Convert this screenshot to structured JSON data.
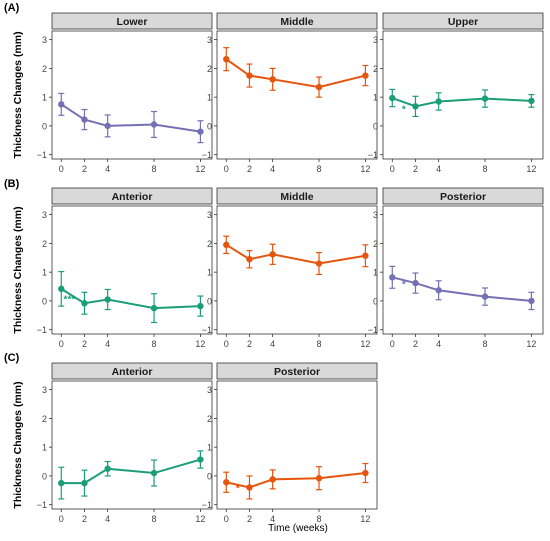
{
  "x_axis_label": "Time (weeks)",
  "colors": {
    "purple": "#7570b3",
    "orange": "#e6550d",
    "green": "#1b9e77",
    "strip_bg": "#d9d9d9"
  },
  "chart_data": [
    {
      "type": "line",
      "row_label": "(A)",
      "ylabel": "Thickness Changes (mm)",
      "x_ticks": [
        0,
        2,
        4,
        8,
        12
      ],
      "y_ticks": [
        -1,
        0,
        1,
        2,
        3
      ],
      "ylim": [
        -1.15,
        3.3
      ],
      "xlim": [
        -0.8,
        13
      ],
      "panels": [
        {
          "title": "Lower",
          "color": "#7570b3",
          "x": [
            0,
            2,
            4,
            8,
            12
          ],
          "y": [
            0.75,
            0.22,
            0.0,
            0.05,
            -0.2
          ],
          "err": [
            0.38,
            0.35,
            0.38,
            0.45,
            0.38
          ]
        },
        {
          "title": "Middle",
          "color": "#e6550d",
          "x": [
            0,
            2,
            4,
            8,
            12
          ],
          "y": [
            2.32,
            1.75,
            1.62,
            1.35,
            1.75
          ],
          "err": [
            0.4,
            0.4,
            0.38,
            0.35,
            0.35
          ]
        },
        {
          "title": "Upper",
          "color": "#1b9e77",
          "x": [
            0,
            2,
            4,
            8,
            12
          ],
          "y": [
            0.97,
            0.68,
            0.85,
            0.95,
            0.87
          ],
          "err": [
            0.3,
            0.35,
            0.3,
            0.3,
            0.22
          ],
          "annotation": {
            "text": "*",
            "x": 1.0,
            "y": 0.6
          }
        }
      ]
    },
    {
      "type": "line",
      "row_label": "(B)",
      "ylabel": "Thickness Changes (mm)",
      "x_ticks": [
        0,
        2,
        4,
        8,
        12
      ],
      "y_ticks": [
        -1,
        0,
        1,
        2,
        3
      ],
      "ylim": [
        -1.15,
        3.3
      ],
      "xlim": [
        -0.8,
        13
      ],
      "panels": [
        {
          "title": "Anterior",
          "color": "#1b9e77",
          "x": [
            0,
            2,
            4,
            8,
            12
          ],
          "y": [
            0.42,
            -0.08,
            0.05,
            -0.25,
            -0.18
          ],
          "err": [
            0.6,
            0.38,
            0.35,
            0.5,
            0.35
          ],
          "annotation": {
            "text": "***",
            "x": 0.7,
            "y": 0.08
          }
        },
        {
          "title": "Middle",
          "color": "#e6550d",
          "x": [
            0,
            2,
            4,
            8,
            12
          ],
          "y": [
            1.95,
            1.45,
            1.62,
            1.3,
            1.57
          ],
          "err": [
            0.3,
            0.3,
            0.35,
            0.38,
            0.38
          ]
        },
        {
          "title": "Posterior",
          "color": "#7570b3",
          "x": [
            0,
            2,
            4,
            8,
            12
          ],
          "y": [
            0.82,
            0.62,
            0.37,
            0.15,
            0.0
          ],
          "err": [
            0.38,
            0.35,
            0.33,
            0.3,
            0.3
          ],
          "annotation": {
            "text": "*",
            "x": 1.0,
            "y": 0.6
          }
        }
      ]
    },
    {
      "type": "line",
      "row_label": "(C)",
      "ylabel": "Thickness Changes (mm)",
      "x_ticks": [
        0,
        2,
        4,
        8,
        12
      ],
      "y_ticks": [
        -1,
        0,
        1,
        2,
        3
      ],
      "ylim": [
        -1.15,
        3.3
      ],
      "xlim": [
        -0.8,
        13
      ],
      "panels": [
        {
          "title": "Anterior",
          "color": "#1b9e77",
          "x": [
            0,
            2,
            4,
            8,
            12
          ],
          "y": [
            -0.25,
            -0.25,
            0.25,
            0.1,
            0.57
          ],
          "err": [
            0.55,
            0.45,
            0.25,
            0.45,
            0.3
          ]
        },
        {
          "title": "Posterior",
          "color": "#e6550d",
          "x": [
            0,
            2,
            4,
            8,
            12
          ],
          "y": [
            -0.22,
            -0.4,
            -0.12,
            -0.08,
            0.1
          ],
          "err": [
            0.35,
            0.4,
            0.33,
            0.4,
            0.33
          ],
          "annotation": {
            "text": "*",
            "x": 1.0,
            "y": -0.4
          }
        }
      ]
    }
  ]
}
